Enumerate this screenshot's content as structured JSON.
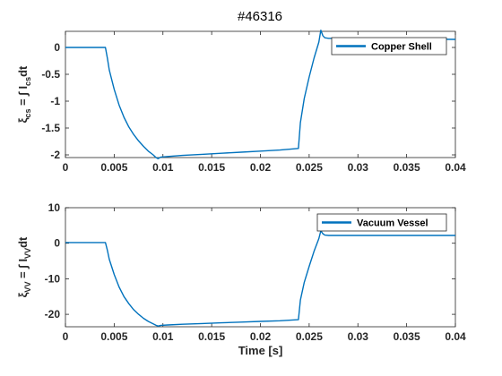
{
  "figure": {
    "title": "#46316"
  },
  "chart_data": [
    {
      "type": "line",
      "ylabel": {
        "xi": "ξ",
        "xi_sub": "cs",
        "mid": " = ∫ I",
        "i_sub": "cs",
        "tail": "dt"
      },
      "xlabel": "",
      "xlim": [
        0,
        0.04
      ],
      "ylim": [
        -2.05,
        0.3
      ],
      "x_ticks": [
        "0",
        "0.005",
        "0.01",
        "0.015",
        "0.02",
        "0.025",
        "0.03",
        "0.035",
        "0.04"
      ],
      "y_ticks": [
        "-2",
        "-1.5",
        "-1",
        "-0.5",
        "0"
      ],
      "y_tick_values": [
        -2,
        -1.5,
        -1,
        -0.5,
        0
      ],
      "legend_position": "top-right",
      "grid": false,
      "color": "#0072BD",
      "series": [
        {
          "name": "Copper Shell",
          "x": [
            0,
            0.0041,
            0.0043,
            0.0045,
            0.005,
            0.0055,
            0.006,
            0.0065,
            0.007,
            0.0075,
            0.008,
            0.0085,
            0.009,
            0.0093,
            0.0095,
            0.0098,
            0.0105,
            0.012,
            0.014,
            0.016,
            0.018,
            0.02,
            0.022,
            0.0239,
            0.0241,
            0.0245,
            0.025,
            0.0255,
            0.026,
            0.0262,
            0.0264,
            0.0266,
            0.027,
            0.03,
            0.035,
            0.04
          ],
          "y": [
            0,
            0,
            -0.2,
            -0.42,
            -0.78,
            -1.07,
            -1.3,
            -1.48,
            -1.62,
            -1.74,
            -1.84,
            -1.93,
            -2.0,
            -2.05,
            -2.07,
            -2.04,
            -2.03,
            -2.01,
            -1.99,
            -1.97,
            -1.95,
            -1.93,
            -1.91,
            -1.88,
            -1.4,
            -0.95,
            -0.55,
            -0.2,
            0.1,
            0.32,
            0.22,
            0.18,
            0.17,
            0.17,
            0.16,
            0.15
          ]
        }
      ]
    },
    {
      "type": "line",
      "ylabel": {
        "xi": "ξ",
        "xi_sub": "VV",
        "mid": " = ∫ I",
        "i_sub": "VV",
        "tail": "dt"
      },
      "xlabel": "Time [s]",
      "xlim": [
        0,
        0.04
      ],
      "ylim": [
        -23.5,
        10
      ],
      "x_ticks": [
        "0",
        "0.005",
        "0.01",
        "0.015",
        "0.02",
        "0.025",
        "0.03",
        "0.035",
        "0.04"
      ],
      "y_ticks": [
        "-20",
        "-10",
        "0",
        "10"
      ],
      "y_tick_values": [
        -20,
        -10,
        0,
        10
      ],
      "legend_position": "top-right",
      "grid": false,
      "color": "#0072BD",
      "series": [
        {
          "name": "Vacuum Vessel",
          "x": [
            0,
            0.0041,
            0.0043,
            0.0045,
            0.005,
            0.0055,
            0.006,
            0.0065,
            0.007,
            0.0075,
            0.008,
            0.0085,
            0.009,
            0.0093,
            0.0095,
            0.0098,
            0.0105,
            0.012,
            0.014,
            0.016,
            0.018,
            0.02,
            0.022,
            0.0239,
            0.0241,
            0.0245,
            0.025,
            0.0255,
            0.026,
            0.0262,
            0.0264,
            0.0266,
            0.027,
            0.03,
            0.035,
            0.04
          ],
          "y": [
            0.2,
            0.2,
            -2.0,
            -4.5,
            -8.8,
            -12.3,
            -15.0,
            -17.0,
            -18.7,
            -20.0,
            -21.1,
            -22.0,
            -22.7,
            -23.1,
            -23.3,
            -23.1,
            -23.0,
            -22.8,
            -22.6,
            -22.4,
            -22.2,
            -22.0,
            -21.8,
            -21.5,
            -16.0,
            -11.0,
            -6.5,
            -2.3,
            1.3,
            3.5,
            2.7,
            2.3,
            2.2,
            2.2,
            2.2,
            2.2
          ]
        }
      ]
    }
  ]
}
